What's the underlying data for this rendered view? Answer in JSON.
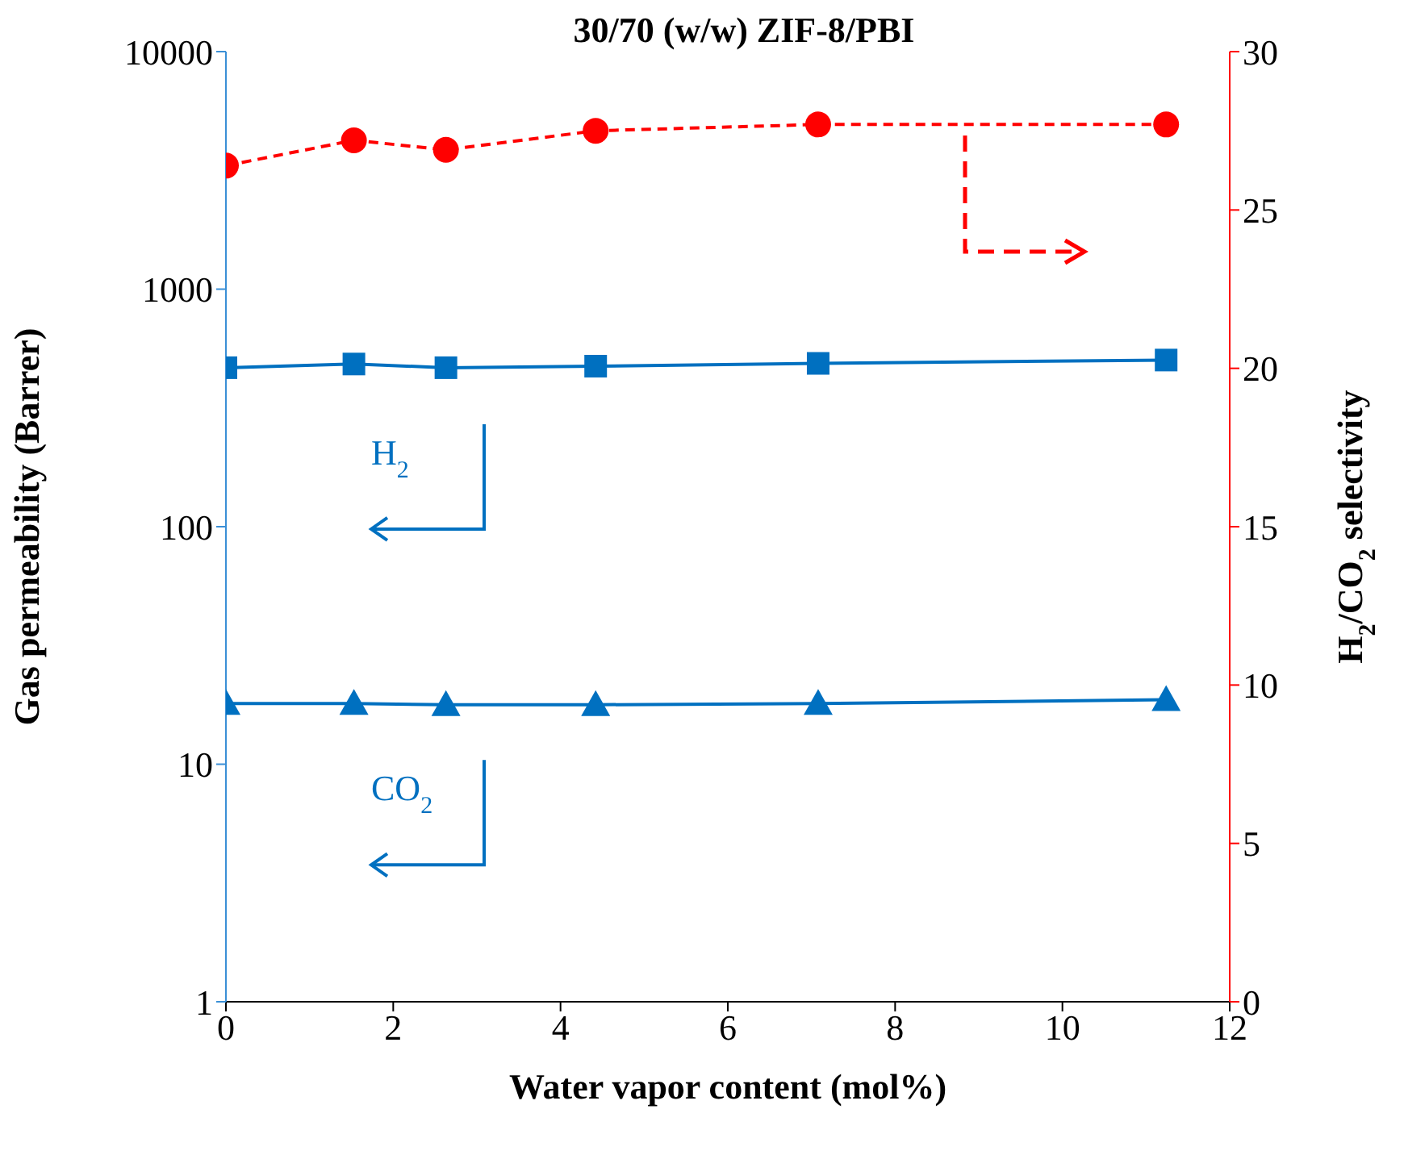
{
  "chart_data": {
    "type": "line",
    "title": "30/70 (w/w) ZIF-8/PBI",
    "xlabel": "Water vapor content (mol%)",
    "ylabel": "Gas permeability (Barrer)",
    "y2label": "H$_{2}$/CO$_{2}$ selectivity",
    "x": [
      0,
      1.53,
      2.63,
      4.42,
      7.08,
      11.24
    ],
    "series": [
      {
        "name": "H$_{2}$",
        "color": "#0070c0",
        "values": [
          467,
          484,
          467,
          474,
          487,
          503
        ],
        "marker": "square",
        "line_style": "solid"
      },
      {
        "name": "CO$_{2}$",
        "color": "#0070c0",
        "values": [
          18.0,
          18.0,
          17.8,
          17.8,
          18.0,
          18.7
        ],
        "marker": "triangle",
        "line_style": "solid"
      },
      {
        "color": "#ff0000",
        "values": [
          26.4,
          27.2,
          26.9,
          27.5,
          27.7,
          27.7
        ],
        "marker": "circle",
        "line_style": "dashed",
        "axis": "y2"
      }
    ],
    "xlim": [
      0,
      12
    ],
    "xticks": [
      0,
      2,
      4,
      6,
      8,
      10,
      12
    ],
    "ylim": [
      1,
      10000
    ],
    "yticks": [
      1,
      10,
      100,
      1000,
      10000
    ],
    "log": "y",
    "y2lim": [
      0,
      30
    ],
    "y2ticks": [
      0,
      5,
      10,
      15,
      20,
      25,
      30
    ],
    "grid": false,
    "legend": false
  }
}
